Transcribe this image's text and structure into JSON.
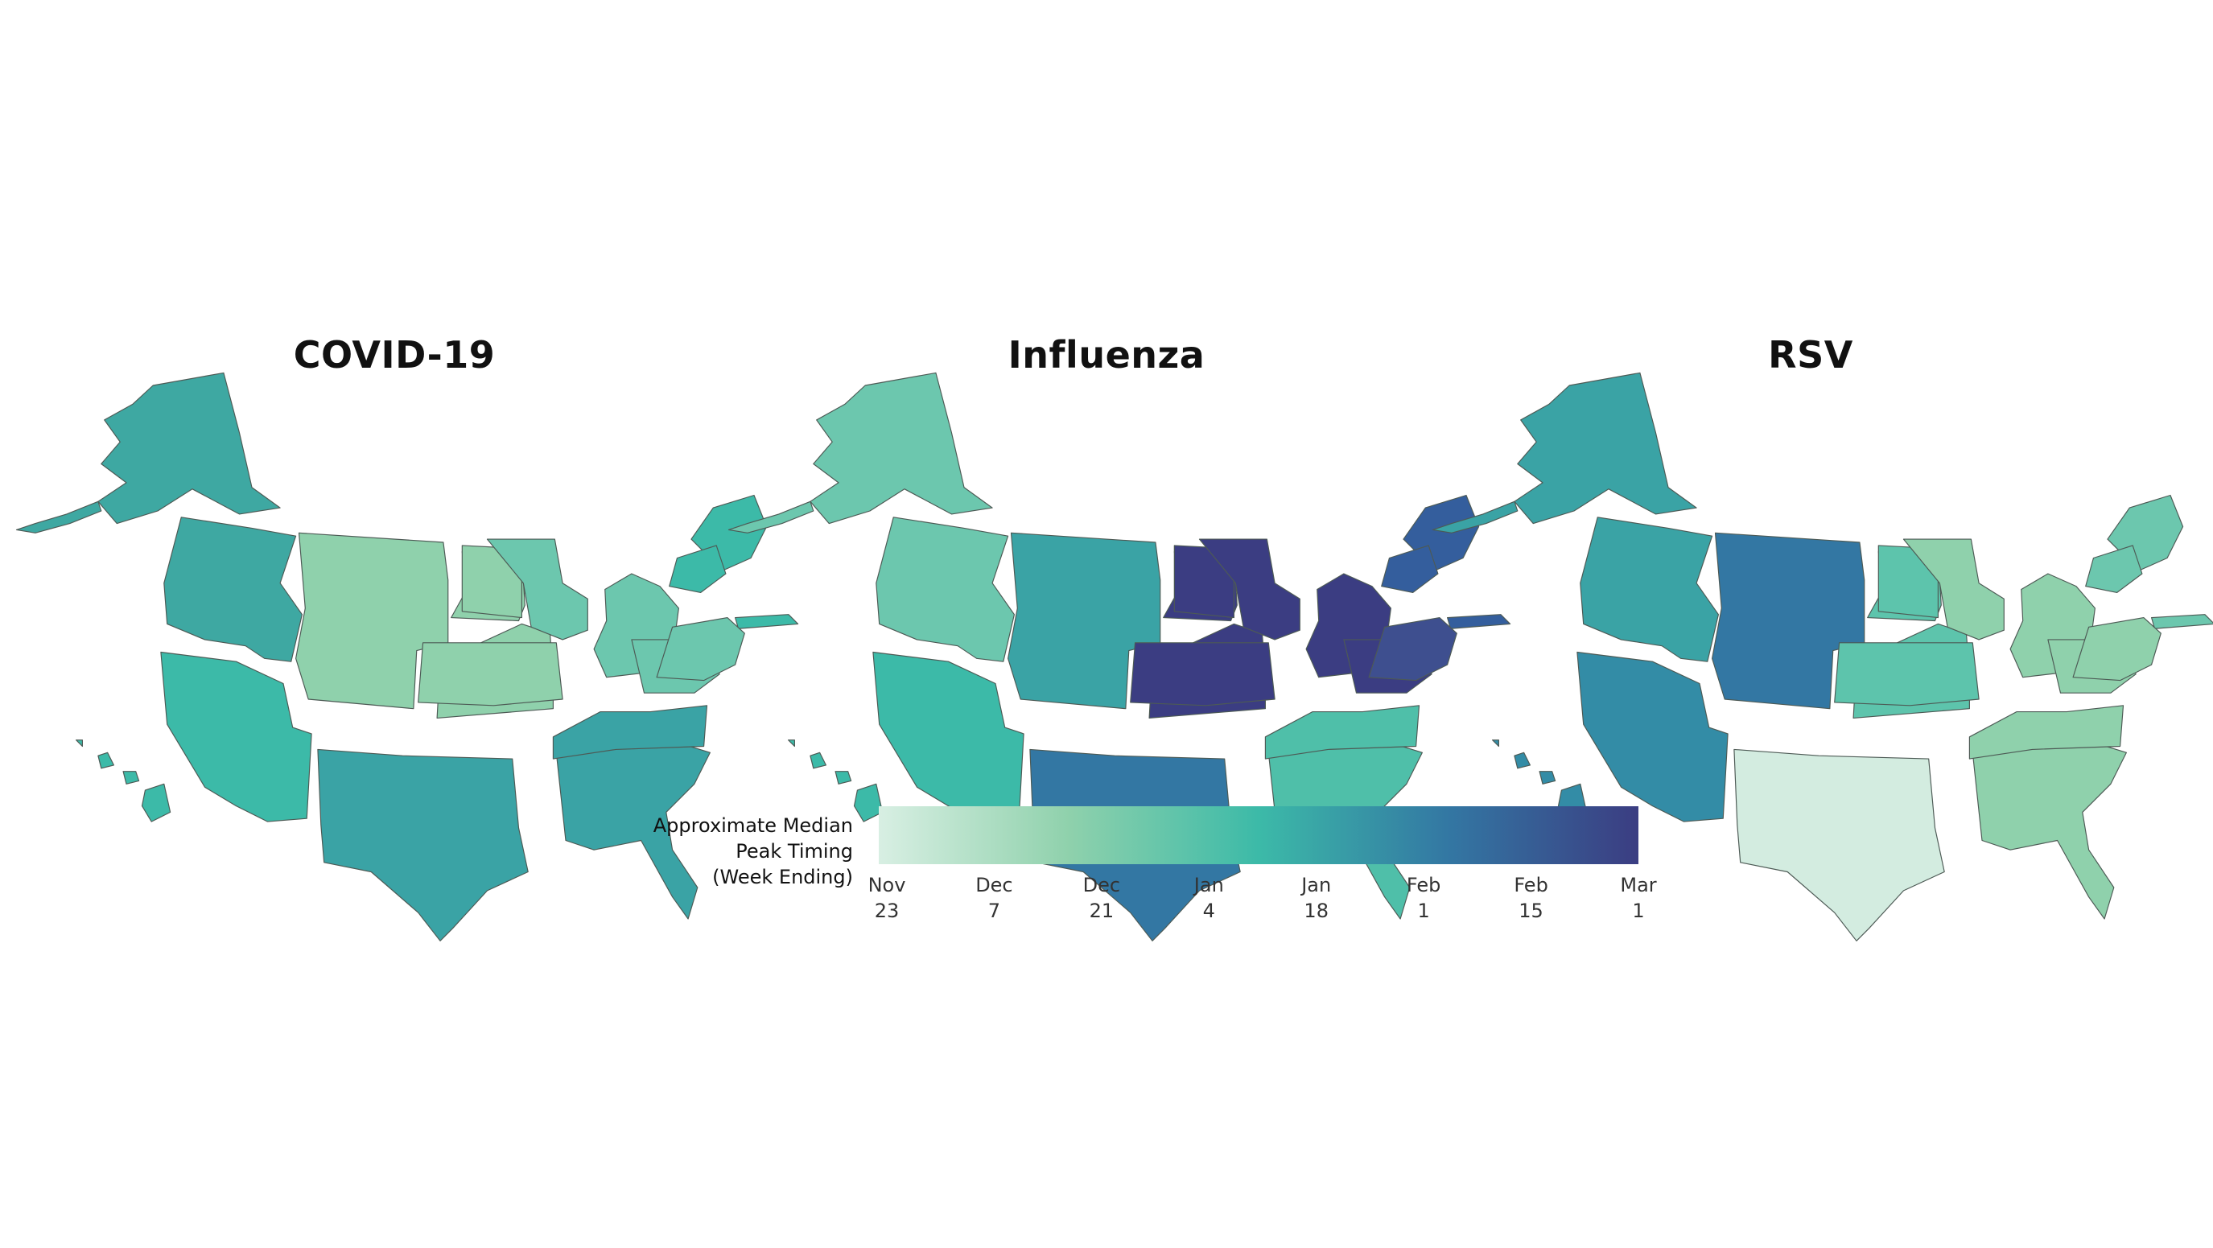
{
  "maps": [
    {
      "title": "COVID-19",
      "regions": {
        "alaska": "#3ea8a2",
        "pacific_nw": "#3ea8a2",
        "mountain_north": "#8fd1ac",
        "dakotas_plains": "#8fd1ac",
        "upper_midwest": "#6cc7ae",
        "great_lakes": "#6cc7ae",
        "new_england": "#3cbaa8",
        "mid_atlantic": "#6cc7ae",
        "southwest": "#3cbaa8",
        "south_central": "#3aa3a5",
        "southeast": "#3aa3a5",
        "hawaii": "#3cbaa8"
      }
    },
    {
      "title": "Influenza",
      "regions": {
        "alaska": "#6cc7ae",
        "pacific_nw": "#6cc7ae",
        "mountain_north": "#3aa3a5",
        "dakotas_plains": "#3b3d82",
        "upper_midwest": "#3b3d82",
        "great_lakes": "#3b3d82",
        "new_england": "#345e9d",
        "mid_atlantic": "#3e4f8f",
        "southwest": "#3cbaa8",
        "south_central": "#3377a3",
        "southeast": "#4fbfa9",
        "hawaii": "#3cbaa8"
      }
    },
    {
      "title": "RSV",
      "regions": {
        "alaska": "#3aa3a5",
        "pacific_nw": "#3aa3a5",
        "mountain_north": "#3377a3",
        "dakotas_plains": "#5dc4ac",
        "upper_midwest": "#8fd1ac",
        "great_lakes": "#8fd1ac",
        "new_england": "#6cc7ae",
        "mid_atlantic": "#8fd1ac",
        "southwest": "#338ca6",
        "south_central": "#d3ece0",
        "southeast": "#8fd1ac",
        "hawaii": "#338ca6"
      }
    }
  ],
  "legend": {
    "title_lines": [
      "Approximate Median",
      "Peak Timing",
      "(Week Ending)"
    ],
    "ticks": [
      {
        "month": "Nov",
        "day": "23"
      },
      {
        "month": "Dec",
        "day": "7"
      },
      {
        "month": "Dec",
        "day": "21"
      },
      {
        "month": "Jan",
        "day": "4"
      },
      {
        "month": "Jan",
        "day": "18"
      },
      {
        "month": "Feb",
        "day": "1"
      },
      {
        "month": "Feb",
        "day": "15"
      },
      {
        "month": "Mar",
        "day": "1"
      }
    ],
    "colors": [
      "#d8efe3",
      "#8fd1ac",
      "#3cbaa8",
      "#3377a3",
      "#3b3d82"
    ]
  }
}
